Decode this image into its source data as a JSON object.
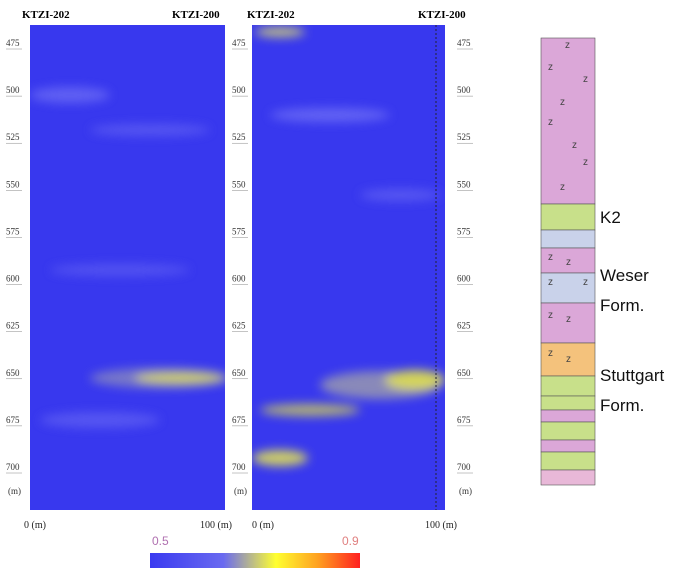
{
  "panels": [
    {
      "wells": [
        "KTZI-202",
        "KTZI-200"
      ],
      "depth_ticks": [
        475,
        500,
        525,
        550,
        575,
        600,
        625,
        650,
        675,
        700
      ],
      "depth_unit": "(m)",
      "x_labels": [
        "0 (m)",
        "100 (m)"
      ]
    },
    {
      "wells": [
        "KTZI-202",
        "KTZI-200"
      ],
      "depth_ticks": [
        475,
        500,
        525,
        550,
        575,
        600,
        625,
        650,
        675,
        700
      ],
      "depth_unit": "(m)",
      "depth_ticks_right": [
        475,
        500,
        525,
        550,
        575,
        600,
        625,
        650,
        675,
        700
      ],
      "depth_unit_right": "(m)",
      "x_labels": [
        "0 (m)",
        "100 (m)"
      ]
    }
  ],
  "colorbar": {
    "min_label": "0.5",
    "max_label": "0.9"
  },
  "column": {
    "k2": "K2",
    "weser": [
      "Weser",
      "Form."
    ],
    "stuttgart": [
      "Stuttgart",
      "Form."
    ]
  }
}
